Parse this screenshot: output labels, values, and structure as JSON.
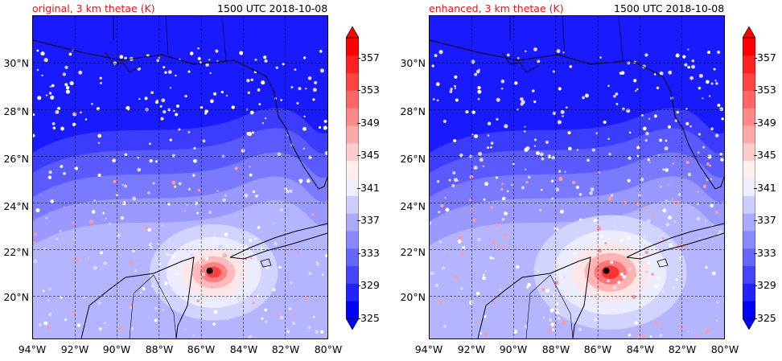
{
  "panels": [
    {
      "title": "original, 3 km thetae (K)",
      "time": "1500 UTC 2018-10-08",
      "storm_intensity": 0.6
    },
    {
      "title": "enhanced, 3 km thetae (K)",
      "time": "1500 UTC 2018-10-08",
      "storm_intensity": 1.0
    }
  ],
  "axes": {
    "lat_labels": [
      "30°N",
      "28°N",
      "26°N",
      "24°N",
      "22°N",
      "20°N"
    ],
    "lon_labels": [
      "94°W",
      "92°W",
      "90°W",
      "88°W",
      "86°W",
      "84°W",
      "82°W",
      "80°W"
    ]
  },
  "colorbar": {
    "tick_labels": [
      "357",
      "353",
      "349",
      "345",
      "341",
      "337",
      "333",
      "329",
      "325"
    ],
    "min": 325,
    "max": 357,
    "levels": 16
  },
  "colors": {
    "cold": "#0000ff",
    "neutral": "#ffffff",
    "warm": "#ff0000"
  }
}
